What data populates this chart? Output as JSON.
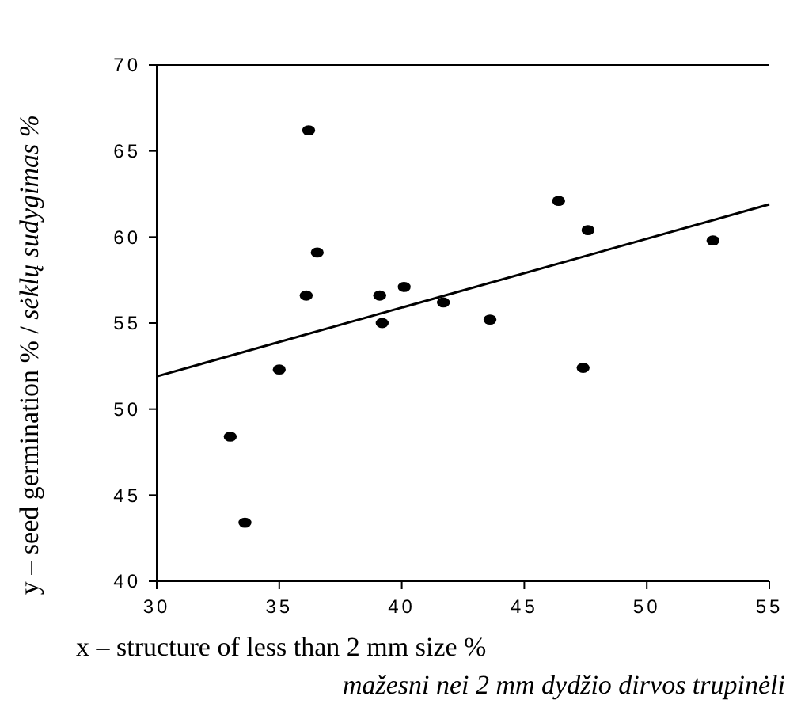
{
  "chart_data": {
    "type": "scatter",
    "xlabel": "x – structure of less than 2 mm size %\nmažesni nei 2 mm dydžio dirvos trupinėli",
    "ylabel": "y – seed germination % / sėklų sudygimas %",
    "xlim": [
      30,
      55
    ],
    "xticks": [
      30,
      35,
      40,
      45,
      50,
      55
    ],
    "ylim": [
      40,
      70
    ],
    "yticks": [
      40,
      45,
      50,
      55,
      60,
      65,
      70
    ],
    "grid": false,
    "series": [
      {
        "marker": "circle",
        "color": "#000000",
        "x": [
          36.2,
          36.55,
          36.1,
          39.1,
          40.1,
          41.7,
          39.2,
          35.0,
          33.0,
          33.6,
          46.4,
          47.6,
          43.6,
          47.4,
          52.7
        ],
        "values": [
          66.2,
          59.1,
          56.6,
          56.6,
          57.1,
          56.2,
          55.0,
          52.3,
          48.4,
          43.4,
          62.1,
          60.4,
          55.2,
          52.4,
          59.8
        ]
      },
      {
        "type": "line",
        "color": "#000000",
        "x": [
          30,
          55
        ],
        "values": [
          51.9,
          61.9
        ]
      }
    ]
  }
}
